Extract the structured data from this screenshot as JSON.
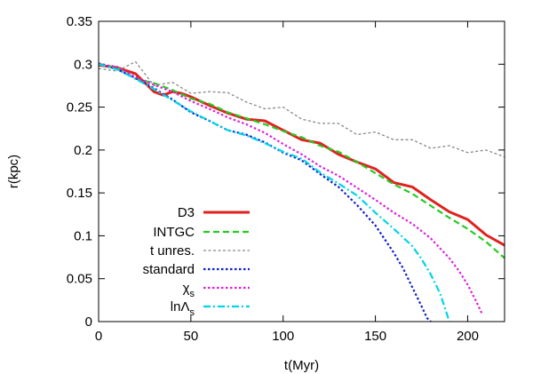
{
  "chart_data": {
    "type": "line",
    "title": "",
    "xlabel": "t(Myr)",
    "ylabel": "r(kpc)",
    "xlim": [
      0,
      220
    ],
    "ylim": [
      0,
      0.35
    ],
    "xticks": [
      0,
      50,
      100,
      150,
      200
    ],
    "xtick_labels": [
      "0",
      "50",
      "100",
      "150",
      "200"
    ],
    "yticks": [
      0,
      0.05,
      0.1,
      0.15,
      0.2,
      0.25,
      0.3,
      0.35
    ],
    "ytick_labels": [
      "0",
      "0.05",
      "0.1",
      "0.15",
      "0.2",
      "0.25",
      "0.3",
      "0.35"
    ],
    "grid": false,
    "legend_position": "bottom-left",
    "series": [
      {
        "name": "D3",
        "color": "#e0211f",
        "dash": "solid",
        "x": [
          0,
          10,
          20,
          30,
          35,
          40,
          45,
          50,
          60,
          70,
          80,
          90,
          100,
          110,
          120,
          130,
          140,
          150,
          160,
          170,
          180,
          190,
          200,
          210,
          220
        ],
        "y": [
          0.299,
          0.296,
          0.289,
          0.268,
          0.264,
          0.268,
          0.266,
          0.262,
          0.252,
          0.243,
          0.236,
          0.234,
          0.223,
          0.212,
          0.208,
          0.195,
          0.186,
          0.178,
          0.162,
          0.157,
          0.142,
          0.128,
          0.119,
          0.101,
          0.089
        ]
      },
      {
        "name": "INTGC",
        "color": "#22cc22",
        "dash": "dashed",
        "x": [
          0,
          10,
          20,
          30,
          40,
          50,
          60,
          70,
          80,
          90,
          100,
          110,
          120,
          130,
          140,
          150,
          160,
          170,
          180,
          190,
          200,
          210,
          220
        ],
        "y": [
          0.3,
          0.296,
          0.283,
          0.278,
          0.27,
          0.26,
          0.254,
          0.244,
          0.237,
          0.23,
          0.222,
          0.215,
          0.205,
          0.198,
          0.186,
          0.173,
          0.16,
          0.149,
          0.135,
          0.121,
          0.108,
          0.093,
          0.074
        ]
      },
      {
        "name": "t unres.",
        "color": "#888888",
        "dash": "dotted-gray",
        "x": [
          0,
          10,
          20,
          30,
          40,
          50,
          60,
          70,
          80,
          90,
          100,
          110,
          120,
          130,
          140,
          150,
          160,
          170,
          180,
          190,
          200,
          210,
          220
        ],
        "y": [
          0.295,
          0.292,
          0.303,
          0.275,
          0.279,
          0.266,
          0.268,
          0.267,
          0.256,
          0.248,
          0.25,
          0.236,
          0.231,
          0.231,
          0.218,
          0.221,
          0.212,
          0.212,
          0.202,
          0.205,
          0.197,
          0.2,
          0.192
        ]
      },
      {
        "name": "standard",
        "color": "#1020cc",
        "dash": "dotted",
        "x": [
          0,
          10,
          20,
          30,
          40,
          50,
          60,
          70,
          80,
          90,
          100,
          110,
          120,
          130,
          140,
          150,
          160,
          165,
          170,
          175,
          178,
          180
        ],
        "y": [
          0.301,
          0.294,
          0.284,
          0.272,
          0.259,
          0.244,
          0.234,
          0.223,
          0.218,
          0.209,
          0.197,
          0.188,
          0.172,
          0.157,
          0.136,
          0.112,
          0.08,
          0.062,
          0.04,
          0.018,
          0.004,
          0.0
        ]
      },
      {
        "name": "χs",
        "color": "#dd22dd",
        "dash": "dotted",
        "x": [
          0,
          10,
          20,
          30,
          40,
          50,
          60,
          70,
          80,
          90,
          100,
          110,
          120,
          130,
          140,
          150,
          160,
          170,
          180,
          190,
          195,
          200,
          205,
          208
        ],
        "y": [
          0.3,
          0.297,
          0.285,
          0.276,
          0.268,
          0.257,
          0.248,
          0.238,
          0.23,
          0.22,
          0.207,
          0.195,
          0.181,
          0.17,
          0.156,
          0.142,
          0.127,
          0.114,
          0.097,
          0.074,
          0.06,
          0.043,
          0.022,
          0.008
        ]
      },
      {
        "name": "lnΛs",
        "color": "#00d4e8",
        "dash": "dashdot",
        "x": [
          0,
          10,
          20,
          30,
          40,
          50,
          60,
          70,
          80,
          90,
          100,
          110,
          120,
          130,
          140,
          150,
          160,
          170,
          175,
          180,
          185,
          188,
          190
        ],
        "y": [
          0.3,
          0.294,
          0.283,
          0.271,
          0.258,
          0.245,
          0.234,
          0.223,
          0.217,
          0.208,
          0.198,
          0.19,
          0.174,
          0.161,
          0.147,
          0.127,
          0.108,
          0.088,
          0.073,
          0.055,
          0.033,
          0.014,
          0.0
        ]
      }
    ]
  }
}
